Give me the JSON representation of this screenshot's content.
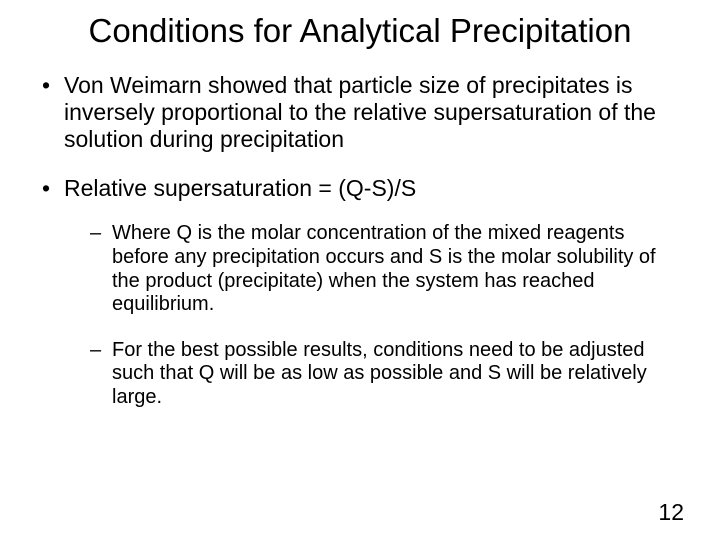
{
  "title": "Conditions for Analytical Precipitation",
  "bullets": [
    {
      "text": "Von Weimarn showed that particle size of precipitates is inversely proportional to the relative supersaturation of the solution during precipitation"
    },
    {
      "text": "Relative supersaturation = (Q-S)/S",
      "sub": [
        "Where Q is the molar concentration of the mixed reagents before any precipitation occurs and S is the molar solubility of the product (precipitate) when the system has reached equilibrium.",
        "For the best possible results, conditions need to be adjusted such that Q will be as low as possible and S will be relatively large."
      ]
    }
  ],
  "page_number": "12",
  "colors": {
    "background": "#ffffff",
    "text": "#000000"
  },
  "typography": {
    "title_fontsize": 33,
    "body_fontsize": 23,
    "sub_fontsize": 20,
    "font_family": "Arial"
  }
}
